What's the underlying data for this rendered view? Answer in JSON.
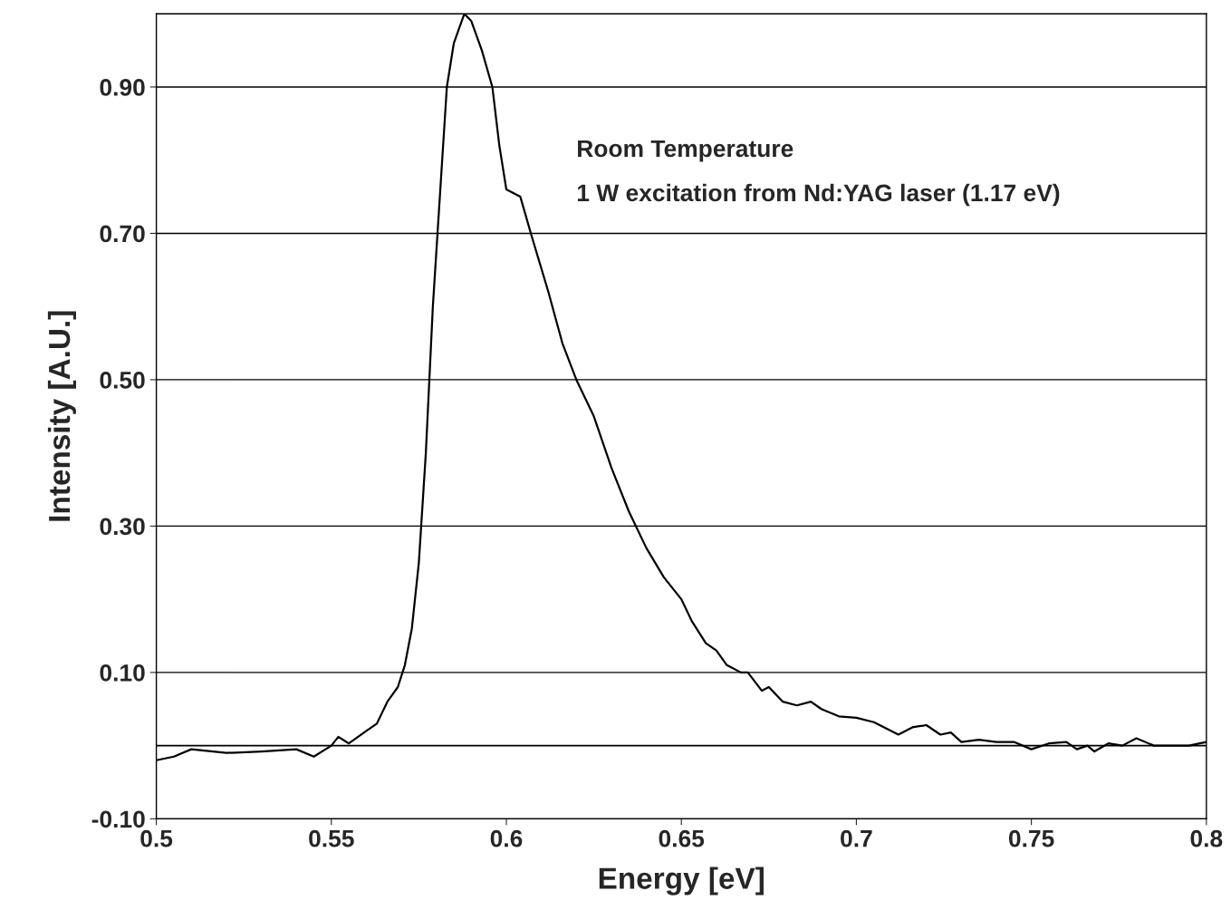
{
  "chart_data": {
    "type": "line",
    "xlabel": "Energy [eV]",
    "ylabel": "Intensity [A.U.]",
    "annotations": [
      "Room Temperature",
      "1 W excitation from Nd:YAG laser (1.17 eV)"
    ],
    "xlim": [
      0.5,
      0.8
    ],
    "xticks": [
      {
        "value": 0.5,
        "label": "0.5"
      },
      0.55,
      {
        "value": 0.6,
        "label": "0.6"
      },
      0.65,
      {
        "value": 0.7,
        "label": "0.7"
      },
      0.75,
      {
        "value": 0.8,
        "label": "0.8"
      }
    ],
    "ylim": [
      -0.1,
      1.0
    ],
    "yticks": [
      {
        "value": -0.1,
        "label": "-0.10"
      },
      {
        "value": 0.1,
        "label": "0.10"
      },
      {
        "value": 0.3,
        "label": "0.30"
      },
      {
        "value": 0.5,
        "label": "0.50"
      },
      {
        "value": 0.7,
        "label": "0.70"
      },
      {
        "value": 0.9,
        "label": "0.90"
      }
    ],
    "grid": "y",
    "legend": false,
    "marker": "none",
    "line_style": "solid",
    "ref_lines": [
      {
        "axis": "y",
        "value": 0,
        "color": "#000000"
      }
    ],
    "series": [
      {
        "color": "#000000",
        "x": [
          0.5,
          0.505,
          0.51,
          0.52,
          0.53,
          0.54,
          0.545,
          0.55,
          0.552,
          0.555,
          0.56,
          0.563,
          0.566,
          0.569,
          0.571,
          0.573,
          0.575,
          0.577,
          0.579,
          0.581,
          0.583,
          0.585,
          0.588,
          0.59,
          0.593,
          0.596,
          0.598,
          0.6,
          0.604,
          0.607,
          0.612,
          0.616,
          0.62,
          0.625,
          0.63,
          0.635,
          0.64,
          0.645,
          0.65,
          0.653,
          0.657,
          0.66,
          0.663,
          0.667,
          0.669,
          0.673,
          0.675,
          0.679,
          0.683,
          0.687,
          0.69,
          0.695,
          0.7,
          0.705,
          0.71,
          0.712,
          0.716,
          0.72,
          0.724,
          0.727,
          0.73,
          0.735,
          0.74,
          0.745,
          0.75,
          0.755,
          0.76,
          0.763,
          0.766,
          0.768,
          0.772,
          0.776,
          0.78,
          0.785,
          0.79,
          0.795,
          0.8
        ],
        "values": [
          -0.02,
          -0.015,
          -0.005,
          -0.01,
          -0.008,
          -0.005,
          -0.015,
          0.0,
          0.012,
          0.003,
          0.02,
          0.03,
          0.06,
          0.08,
          0.11,
          0.16,
          0.25,
          0.4,
          0.6,
          0.75,
          0.9,
          0.96,
          1.0,
          0.99,
          0.95,
          0.9,
          0.82,
          0.76,
          0.75,
          0.7,
          0.62,
          0.55,
          0.5,
          0.45,
          0.38,
          0.32,
          0.27,
          0.23,
          0.2,
          0.17,
          0.14,
          0.13,
          0.11,
          0.1,
          0.1,
          0.075,
          0.08,
          0.06,
          0.055,
          0.06,
          0.05,
          0.04,
          0.038,
          0.032,
          0.02,
          0.015,
          0.025,
          0.028,
          0.015,
          0.018,
          0.005,
          0.008,
          0.005,
          0.005,
          -0.005,
          0.003,
          0.005,
          -0.005,
          0.0,
          -0.008,
          0.003,
          0.0,
          0.01,
          0.0,
          0.0,
          0.0,
          0.005
        ]
      }
    ]
  }
}
